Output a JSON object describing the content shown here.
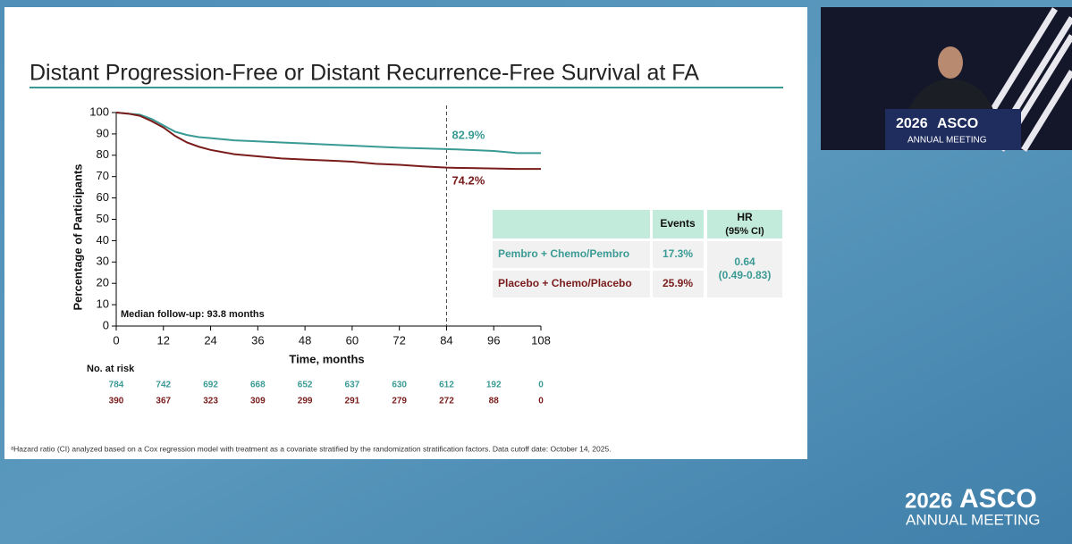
{
  "chart_data": {
    "type": "line",
    "title": "Distant Progression-Free or Distant Recurrence-Free Survival at FA",
    "x_label": "Time, months",
    "y_label": "Percentage of Participants",
    "x": [
      0,
      3,
      6,
      9,
      12,
      15,
      18,
      21,
      24,
      27,
      30,
      36,
      42,
      48,
      54,
      60,
      66,
      72,
      78,
      84,
      90,
      96,
      102,
      108
    ],
    "series": [
      {
        "name": "Pembro + Chemo/Pembro",
        "color": "#3a9a94",
        "values": [
          100,
          99.5,
          99,
          97,
          94,
          91,
          89.5,
          88.5,
          88,
          87.5,
          87,
          86.5,
          86,
          85.5,
          85,
          84.5,
          84,
          83.5,
          83.2,
          82.9,
          82.5,
          82,
          81,
          81
        ]
      },
      {
        "name": "Placebo + Chemo/Placebo",
        "color": "#7a1c1c",
        "values": [
          100,
          99.5,
          98.5,
          96,
          93,
          89,
          86,
          84,
          82.5,
          81.5,
          80.5,
          79.5,
          78.5,
          78,
          77.5,
          77,
          76,
          75.5,
          74.8,
          74.2,
          74,
          73.8,
          73.6,
          73.6
        ]
      }
    ],
    "xlim": [
      0,
      108
    ],
    "xticks": [
      0,
      12,
      24,
      36,
      48,
      60,
      72,
      84,
      96,
      108
    ],
    "ylim": [
      0,
      100
    ],
    "yticks": [
      0,
      10,
      20,
      30,
      40,
      50,
      60,
      70,
      80,
      90,
      100
    ],
    "vline": 84,
    "annotations": [
      "82.9%",
      "74.2%",
      "Median follow-up: 93.8 months"
    ],
    "at_risk": {
      "title": "No. at risk",
      "rows": [
        [
          784,
          742,
          692,
          668,
          652,
          637,
          630,
          612,
          192,
          0
        ],
        [
          390,
          367,
          323,
          309,
          299,
          291,
          279,
          272,
          88,
          0
        ]
      ]
    },
    "hr_table": {
      "events_header": "Events",
      "hr_header": [
        "HR",
        "(95% CI)"
      ],
      "events": [
        "17.3%",
        "25.9%"
      ],
      "hr": [
        "0.64",
        "(0.49-0.83)"
      ]
    }
  },
  "footnote": "ᵃHazard ratio (CI) analyzed based on a Cox regression model with treatment as a covariate stratified by the randomization stratification factors. Data cutoff date: October 14, 2025.",
  "branding": {
    "year": "2026",
    "name": "ASCO",
    "subtitle": "ANNUAL MEETING"
  }
}
